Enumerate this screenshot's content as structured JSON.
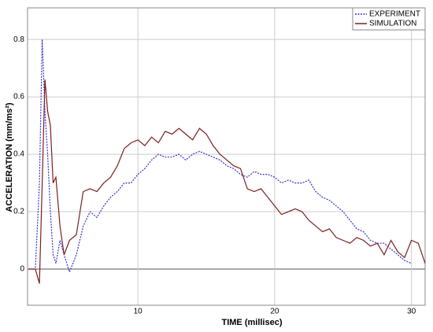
{
  "chart_data": {
    "type": "line",
    "xlabel": "TIME (millisec)",
    "ylabel": "ACCELERATION (mm/ms²)",
    "x": [
      2,
      2.5,
      2.8,
      3.0,
      3.2,
      3.4,
      3.6,
      3.8,
      4.0,
      4.3,
      4.6,
      5.0,
      5.5,
      6,
      6.5,
      7,
      7.5,
      8,
      8.5,
      9,
      9.5,
      10,
      10.5,
      11,
      11.5,
      12,
      12.5,
      13,
      13.5,
      14,
      14.5,
      15,
      15.5,
      16,
      16.5,
      17,
      17.5,
      18,
      18.5,
      19,
      19.5,
      20,
      20.5,
      21,
      21.5,
      22,
      22.5,
      23,
      23.5,
      24,
      24.5,
      25,
      25.5,
      26,
      26.5,
      27,
      27.5,
      28,
      28.5,
      29,
      29.5,
      30,
      30.5,
      31
    ],
    "series": [
      {
        "name": "EXPERIMENT",
        "color": "#3333cc",
        "dash": true,
        "values": [
          0,
          0,
          0.3,
          0.8,
          0.55,
          0.4,
          0.2,
          0.05,
          0.02,
          0.1,
          0.05,
          -0.01,
          0.05,
          0.15,
          0.2,
          0.18,
          0.22,
          0.25,
          0.27,
          0.3,
          0.3,
          0.33,
          0.35,
          0.38,
          0.4,
          0.39,
          0.39,
          0.4,
          0.38,
          0.4,
          0.41,
          0.4,
          0.39,
          0.38,
          0.36,
          0.35,
          0.33,
          0.32,
          0.34,
          0.33,
          0.33,
          0.32,
          0.3,
          0.31,
          0.3,
          0.3,
          0.31,
          0.27,
          0.25,
          0.24,
          0.22,
          0.2,
          0.17,
          0.14,
          0.13,
          0.1,
          0.09,
          0.09,
          0.07,
          0.05,
          0.03,
          0.02,
          null,
          null
        ]
      },
      {
        "name": "SIMULATION",
        "color": "#7a1f1f",
        "dash": false,
        "values": [
          0,
          0,
          -0.05,
          0.3,
          0.66,
          0.55,
          0.5,
          0.3,
          0.32,
          0.15,
          0.05,
          0.1,
          0.12,
          0.27,
          0.28,
          0.27,
          0.3,
          0.32,
          0.36,
          0.42,
          0.44,
          0.45,
          0.43,
          0.46,
          0.44,
          0.48,
          0.47,
          0.49,
          0.47,
          0.45,
          0.49,
          0.47,
          0.43,
          0.4,
          0.38,
          0.36,
          0.35,
          0.28,
          0.27,
          0.28,
          0.25,
          0.22,
          0.19,
          0.2,
          0.21,
          0.2,
          0.17,
          0.15,
          0.13,
          0.14,
          0.11,
          0.1,
          0.09,
          0.11,
          0.1,
          0.08,
          0.09,
          0.05,
          0.1,
          0.06,
          0.04,
          0.1,
          0.09,
          0.02
        ]
      }
    ],
    "xlim": [
      1.93,
      31.0
    ],
    "ylim": [
      -0.126,
      0.91
    ],
    "xticks": [
      10,
      20,
      30
    ],
    "yticks": [
      0,
      0.2,
      0.4,
      0.6,
      0.8
    ],
    "grid": true,
    "legend": "top-right"
  }
}
